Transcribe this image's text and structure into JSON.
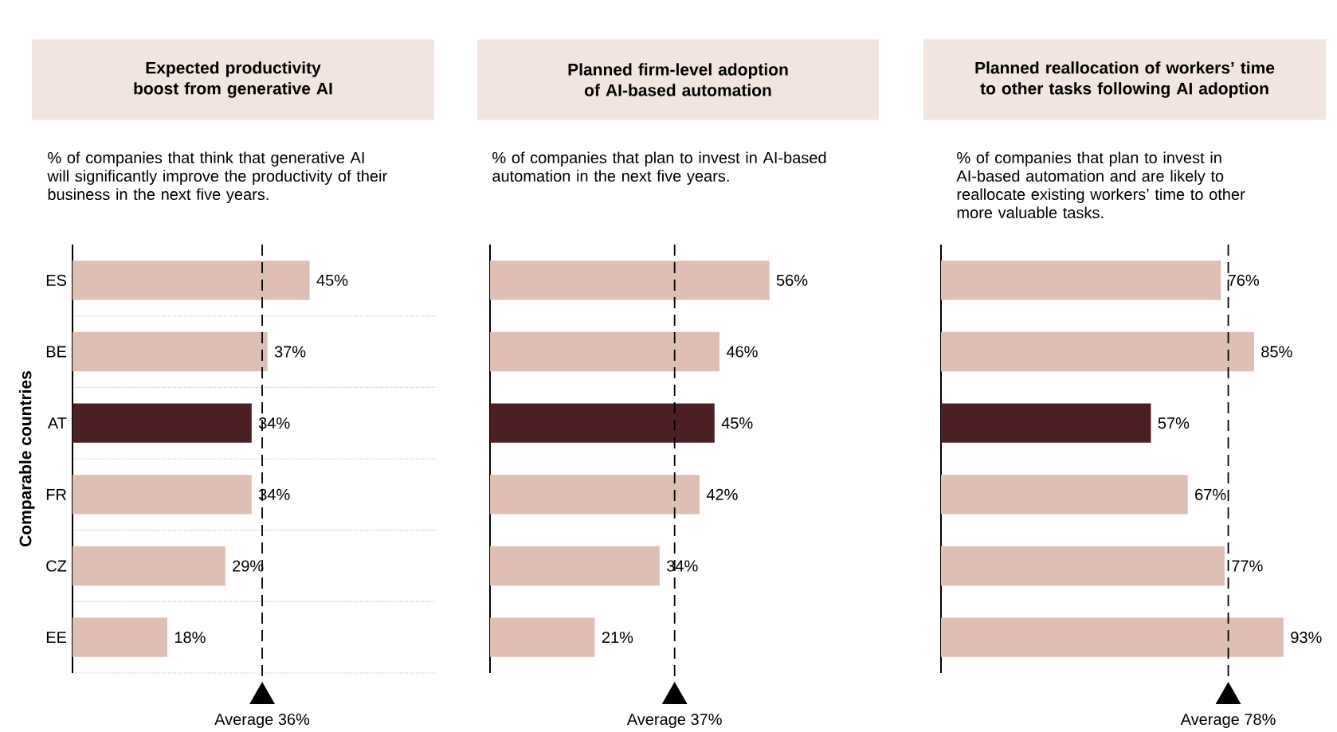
{
  "chart_data": [
    {
      "type": "bar",
      "orientation": "horizontal",
      "title": "Expected productivity boost from generative AI",
      "subtitle": "% of companies that think that generative AI will significantly improve the productivity of their business in the next five years.",
      "ylabel": "Comparable countries",
      "categories": [
        "ES",
        "BE",
        "AT",
        "FR",
        "CZ",
        "EE"
      ],
      "values": [
        45,
        37,
        34,
        34,
        29,
        18
      ],
      "value_labels": [
        "45%",
        "37%",
        "34%",
        "34%",
        "29%",
        "18%"
      ],
      "colors": [
        "#dfbfb3",
        "#dfbfb3",
        "#4b1f24",
        "#dfbfb3",
        "#dfbfb3",
        "#dfbfb3"
      ],
      "grid": "y",
      "tick_labels": "y",
      "ref_lines": [
        {
          "axis": "x",
          "value": 36,
          "label": "Average 36%",
          "color": "#000000",
          "line_style": "dashed"
        }
      ]
    },
    {
      "type": "bar",
      "orientation": "horizontal",
      "title": "Planned firm-level adoption of AI-based automation",
      "subtitle": "% of companies that plan to invest in AI-based automation in the next five years.",
      "categories": [
        null,
        null,
        null,
        null,
        null,
        null
      ],
      "values": [
        56,
        46,
        45,
        42,
        34,
        21
      ],
      "value_labels": [
        "56%",
        "46%",
        "45%",
        "42%",
        "34%",
        "21%"
      ],
      "colors": [
        "#dfbfb3",
        "#dfbfb3",
        "#4b1f24",
        "#dfbfb3",
        "#dfbfb3",
        "#dfbfb3"
      ],
      "grid": "y",
      "tick_labels": false,
      "ref_lines": [
        {
          "axis": "x",
          "value": 37,
          "label": "Average 37%",
          "color": "#000000",
          "line_style": "dashed"
        }
      ]
    },
    {
      "type": "bar",
      "orientation": "horizontal",
      "title": "Planned reallocation of workers’ time to other tasks following AI adoption",
      "subtitle": "% of companies that plan to invest in AI-based automation and are likely to reallocate existing workers’ time to other more valuable tasks.",
      "categories": [
        null,
        null,
        null,
        null,
        null,
        null
      ],
      "values": [
        76,
        85,
        57,
        67,
        77,
        93
      ],
      "value_labels": [
        "76%",
        "85%",
        "57%",
        "67%",
        "77%",
        "93%"
      ],
      "colors": [
        "#dfbfb3",
        "#dfbfb3",
        "#4b1f24",
        "#dfbfb3",
        "#dfbfb3",
        "#dfbfb3"
      ],
      "grid": "y",
      "tick_labels": false,
      "ref_lines": [
        {
          "axis": "x",
          "value": 78,
          "label": "Average 78%",
          "color": "#000000",
          "line_style": "dashed"
        }
      ]
    }
  ]
}
